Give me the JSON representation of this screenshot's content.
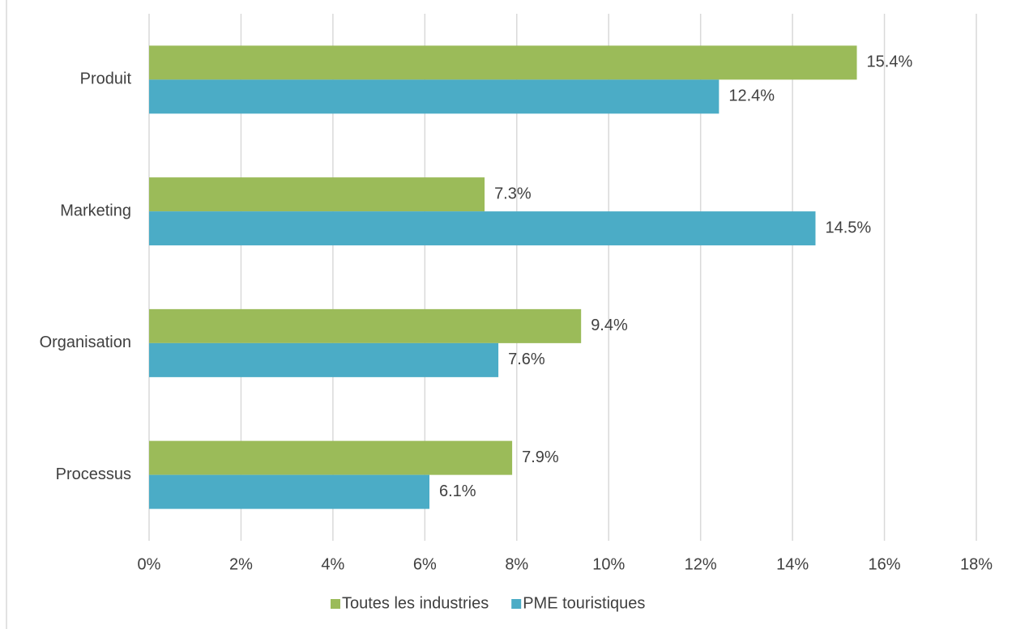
{
  "chart_data": {
    "type": "hbar",
    "categories": [
      "Produit",
      "Marketing",
      "Organisation",
      "Processus"
    ],
    "series": [
      {
        "name": "Toutes les industries",
        "color": "#9bbb59",
        "values": [
          15.4,
          7.3,
          9.4,
          7.9
        ],
        "value_labels": [
          "15.4%",
          "7.3%",
          "9.4%",
          "7.9%"
        ]
      },
      {
        "name": "PME touristiques",
        "color": "#4bacc6",
        "values": [
          12.4,
          14.5,
          7.6,
          6.1
        ],
        "value_labels": [
          "12.4%",
          "14.5%",
          "7.6%",
          "6.1%"
        ]
      }
    ],
    "xlim": [
      0,
      18
    ],
    "xticks": [
      {
        "value": 0,
        "label": "0%"
      },
      {
        "value": 2,
        "label": "2%"
      },
      {
        "value": 4,
        "label": "4%"
      },
      {
        "value": 6,
        "label": "6%"
      },
      {
        "value": 8,
        "label": "8%"
      },
      {
        "value": 10,
        "label": "10%"
      },
      {
        "value": 12,
        "label": "12%"
      },
      {
        "value": 14,
        "label": "14%"
      },
      {
        "value": 16,
        "label": "16%"
      },
      {
        "value": 18,
        "label": "18%"
      }
    ],
    "grid": true,
    "legend": "bottom"
  }
}
